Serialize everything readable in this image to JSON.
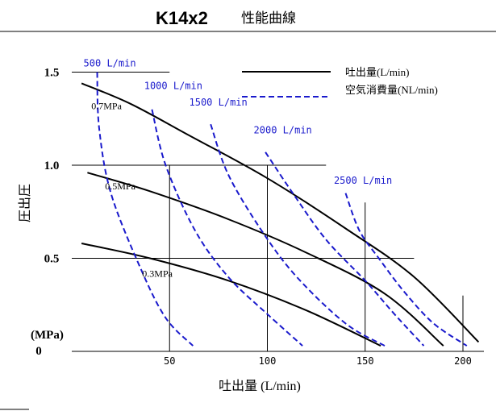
{
  "chart_data": {
    "type": "line",
    "title": "K14x2",
    "subtitle": "性能曲線",
    "xlabel": "吐出量 (L/min)",
    "ylabel": "圧出圧",
    "y_unit": "(MPa)",
    "xlim": [
      0,
      210
    ],
    "ylim": [
      0,
      1.6
    ],
    "x_ticks": [
      {
        "value": 50,
        "label": "50"
      },
      {
        "value": 100,
        "label": "100"
      },
      {
        "value": 150,
        "label": "150"
      },
      {
        "value": 200,
        "label": "200"
      }
    ],
    "y_ticks": [
      {
        "value": 0,
        "label": "0"
      },
      {
        "value": 0.5,
        "label": "0.5"
      },
      {
        "value": 1.0,
        "label": "1.0"
      },
      {
        "value": 1.5,
        "label": "1.5"
      }
    ],
    "legend": {
      "placement": "top-right",
      "entries": [
        {
          "label": "吐出量(L/min)",
          "style": "solid",
          "color": "#000000"
        },
        {
          "label": "空気消費量(NL/min)",
          "style": "dashed",
          "color": "#1a1acc"
        }
      ]
    },
    "series": [
      {
        "name": "0.7MPa",
        "kind": "discharge",
        "color": "#000000",
        "points": [
          [
            5,
            1.44
          ],
          [
            30,
            1.33
          ],
          [
            60,
            1.16
          ],
          [
            100,
            0.93
          ],
          [
            140,
            0.66
          ],
          [
            175,
            0.4
          ],
          [
            208,
            0.05
          ]
        ]
      },
      {
        "name": "0.5MPa",
        "kind": "discharge",
        "color": "#000000",
        "points": [
          [
            8,
            0.96
          ],
          [
            40,
            0.86
          ],
          [
            80,
            0.71
          ],
          [
            120,
            0.53
          ],
          [
            160,
            0.31
          ],
          [
            190,
            0.03
          ]
        ]
      },
      {
        "name": "0.3MPa",
        "kind": "discharge",
        "color": "#000000",
        "points": [
          [
            5,
            0.58
          ],
          [
            40,
            0.5
          ],
          [
            80,
            0.38
          ],
          [
            120,
            0.22
          ],
          [
            158,
            0.03
          ]
        ]
      },
      {
        "name": "500 L/min",
        "kind": "air",
        "color": "#1a1acc",
        "points": [
          [
            13,
            1.5
          ],
          [
            14,
            1.2
          ],
          [
            20,
            0.85
          ],
          [
            35,
            0.45
          ],
          [
            48,
            0.18
          ],
          [
            62,
            0.03
          ]
        ]
      },
      {
        "name": "1000 L/min",
        "kind": "air",
        "color": "#1a1acc",
        "points": [
          [
            41,
            1.3
          ],
          [
            48,
            1.0
          ],
          [
            63,
            0.65
          ],
          [
            80,
            0.4
          ],
          [
            100,
            0.2
          ],
          [
            118,
            0.03
          ]
        ]
      },
      {
        "name": "1500 L/min",
        "kind": "air",
        "color": "#1a1acc",
        "points": [
          [
            71,
            1.22
          ],
          [
            80,
            0.95
          ],
          [
            97,
            0.65
          ],
          [
            115,
            0.4
          ],
          [
            140,
            0.15
          ],
          [
            160,
            0.03
          ]
        ]
      },
      {
        "name": "2000 L/min",
        "kind": "air",
        "color": "#1a1acc",
        "points": [
          [
            99,
            1.07
          ],
          [
            113,
            0.85
          ],
          [
            130,
            0.6
          ],
          [
            150,
            0.38
          ],
          [
            165,
            0.2
          ],
          [
            180,
            0.03
          ]
        ]
      },
      {
        "name": "2500 L/min",
        "kind": "air",
        "color": "#1a1acc",
        "points": [
          [
            140,
            0.85
          ],
          [
            147,
            0.65
          ],
          [
            157,
            0.5
          ],
          [
            170,
            0.32
          ],
          [
            185,
            0.15
          ],
          [
            202,
            0.03
          ]
        ]
      }
    ],
    "annotations": [
      {
        "text": "0.7MPa",
        "series": "0.7MPa",
        "at": [
          10,
          1.3
        ],
        "color": "#000000"
      },
      {
        "text": "0.5MPa",
        "series": "0.5MPa",
        "at": [
          17,
          0.87
        ],
        "color": "#000000"
      },
      {
        "text": "0.3MPa",
        "series": "0.3MPa",
        "at": [
          36,
          0.4
        ],
        "color": "#000000"
      },
      {
        "text": "500 L/min",
        "series": "500 L/min",
        "at": [
          6,
          1.53
        ],
        "color": "#1a1acc"
      },
      {
        "text": "1000 L/min",
        "series": "1000 L/min",
        "at": [
          37,
          1.41
        ],
        "color": "#1a1acc"
      },
      {
        "text": "1500 L/min",
        "series": "1500 L/min",
        "at": [
          60,
          1.32
        ],
        "color": "#1a1acc"
      },
      {
        "text": "2000 L/min",
        "series": "2000 L/min",
        "at": [
          93,
          1.17
        ],
        "color": "#1a1acc"
      },
      {
        "text": "2500 L/min",
        "series": "2500 L/min",
        "at": [
          134,
          0.9
        ],
        "color": "#1a1acc"
      }
    ],
    "gridlines": {
      "horizontal": [
        {
          "y": 1.5,
          "x_from": 0,
          "x_to": 50
        },
        {
          "y": 1.0,
          "x_from": 0,
          "x_to": 130
        },
        {
          "y": 0.5,
          "x_from": 0,
          "x_to": 175
        }
      ],
      "vertical": [
        {
          "x": 50,
          "y_from": 0,
          "y_to": 1.0
        },
        {
          "x": 100,
          "y_from": 0,
          "y_to": 1.0
        },
        {
          "x": 150,
          "y_from": 0,
          "y_to": 0.8
        },
        {
          "x": 200,
          "y_from": 0,
          "y_to": 0.3
        }
      ]
    }
  }
}
